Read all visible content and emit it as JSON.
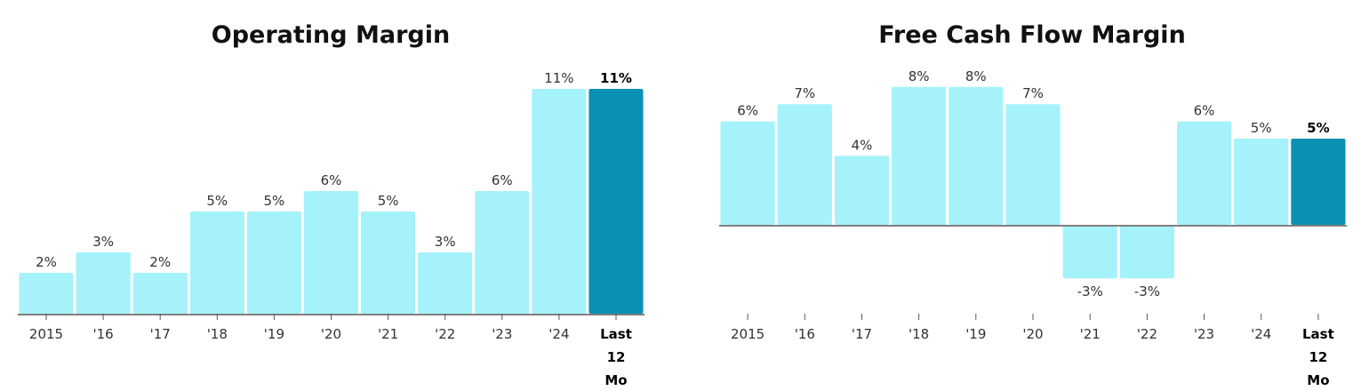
{
  "colors": {
    "bar": "#a6f2fb",
    "highlight": "#0a91b4",
    "axis": "#555555"
  },
  "chart_data": [
    {
      "type": "bar",
      "title": "Operating Margin",
      "categories": [
        "2015",
        "'16",
        "'17",
        "'18",
        "'19",
        "'20",
        "'21",
        "'22",
        "'23",
        "'24",
        "Last 12 Mo"
      ],
      "values": [
        2,
        3,
        2,
        5,
        5,
        6,
        5,
        3,
        6,
        11,
        11
      ],
      "labels": [
        "2%",
        "3%",
        "2%",
        "5%",
        "5%",
        "6%",
        "5%",
        "3%",
        "6%",
        "11%",
        "11%"
      ],
      "highlight_index": 10,
      "ylim": [
        0,
        11
      ]
    },
    {
      "type": "bar",
      "title": "Free Cash Flow Margin",
      "categories": [
        "2015",
        "'16",
        "'17",
        "'18",
        "'19",
        "'20",
        "'21",
        "'22",
        "'23",
        "'24",
        "Last 12 Mo"
      ],
      "values": [
        6,
        7,
        4,
        8,
        8,
        7,
        -3,
        -3,
        6,
        5,
        5
      ],
      "labels": [
        "6%",
        "7%",
        "4%",
        "8%",
        "8%",
        "7%",
        "-3%",
        "-3%",
        "6%",
        "5%",
        "5%"
      ],
      "highlight_index": 10,
      "ylim": [
        -3,
        8
      ]
    }
  ]
}
